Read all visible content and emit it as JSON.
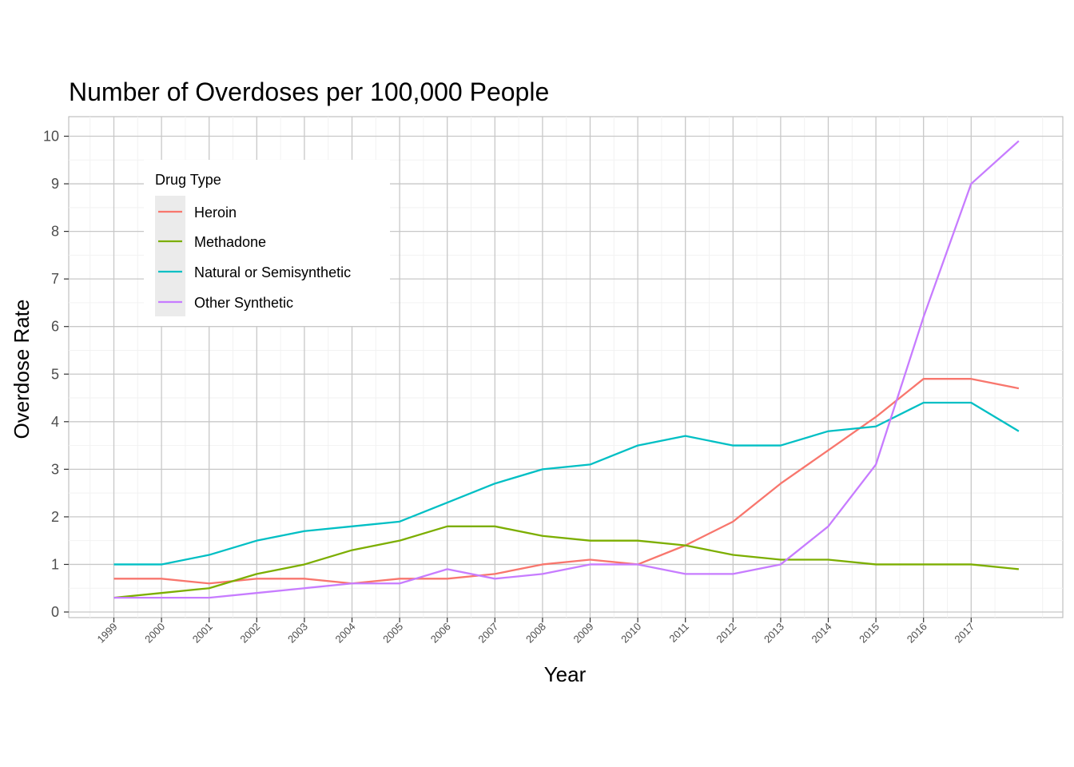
{
  "chart_data": {
    "type": "line",
    "title": "Number of Overdoses per 100,000 People",
    "xlabel": "Year",
    "ylabel": "Overdose Rate",
    "x": [
      1999,
      2000,
      2001,
      2002,
      2003,
      2004,
      2005,
      2006,
      2007,
      2008,
      2009,
      2010,
      2011,
      2012,
      2013,
      2014,
      2015,
      2016,
      2017,
      2018
    ],
    "x_tick_labels": [
      "1999",
      "2000",
      "2001",
      "2002",
      "2003",
      "2004",
      "2005",
      "2006",
      "2007",
      "2008",
      "2009",
      "2010",
      "2011",
      "2012",
      "2013",
      "2014",
      "2015",
      "2016",
      "2017"
    ],
    "y_ticks": [
      "0",
      "1",
      "2",
      "3",
      "4",
      "5",
      "6",
      "7",
      "8",
      "9",
      "10"
    ],
    "ylim": [
      0,
      10
    ],
    "xlim": [
      1999,
      2018
    ],
    "grid": true,
    "legend": {
      "title": "Drug Type",
      "placement": "top-left"
    },
    "series": [
      {
        "name": "Heroin",
        "color": "#F8766D",
        "values": [
          0.7,
          0.7,
          0.6,
          0.7,
          0.7,
          0.6,
          0.7,
          0.7,
          0.8,
          1.0,
          1.1,
          1.0,
          1.4,
          1.9,
          2.7,
          3.4,
          4.1,
          4.9,
          4.9,
          4.7
        ]
      },
      {
        "name": "Methadone",
        "color": "#7CAE00",
        "values": [
          0.3,
          0.4,
          0.5,
          0.8,
          1.0,
          1.3,
          1.5,
          1.8,
          1.8,
          1.6,
          1.5,
          1.5,
          1.4,
          1.2,
          1.1,
          1.1,
          1.0,
          1.0,
          1.0,
          0.9
        ]
      },
      {
        "name": "Natural or Semisynthetic",
        "color": "#00BFC4",
        "values": [
          1.0,
          1.0,
          1.2,
          1.5,
          1.7,
          1.8,
          1.9,
          2.3,
          2.7,
          3.0,
          3.1,
          3.5,
          3.7,
          3.5,
          3.5,
          3.8,
          3.9,
          4.4,
          4.4,
          3.8
        ]
      },
      {
        "name": "Other Synthetic",
        "color": "#C77CFF",
        "values": [
          0.3,
          0.3,
          0.3,
          0.4,
          0.5,
          0.6,
          0.6,
          0.9,
          0.7,
          0.8,
          1.0,
          1.0,
          0.8,
          0.8,
          1.0,
          1.8,
          3.1,
          6.2,
          9.0,
          9.9
        ]
      }
    ]
  }
}
